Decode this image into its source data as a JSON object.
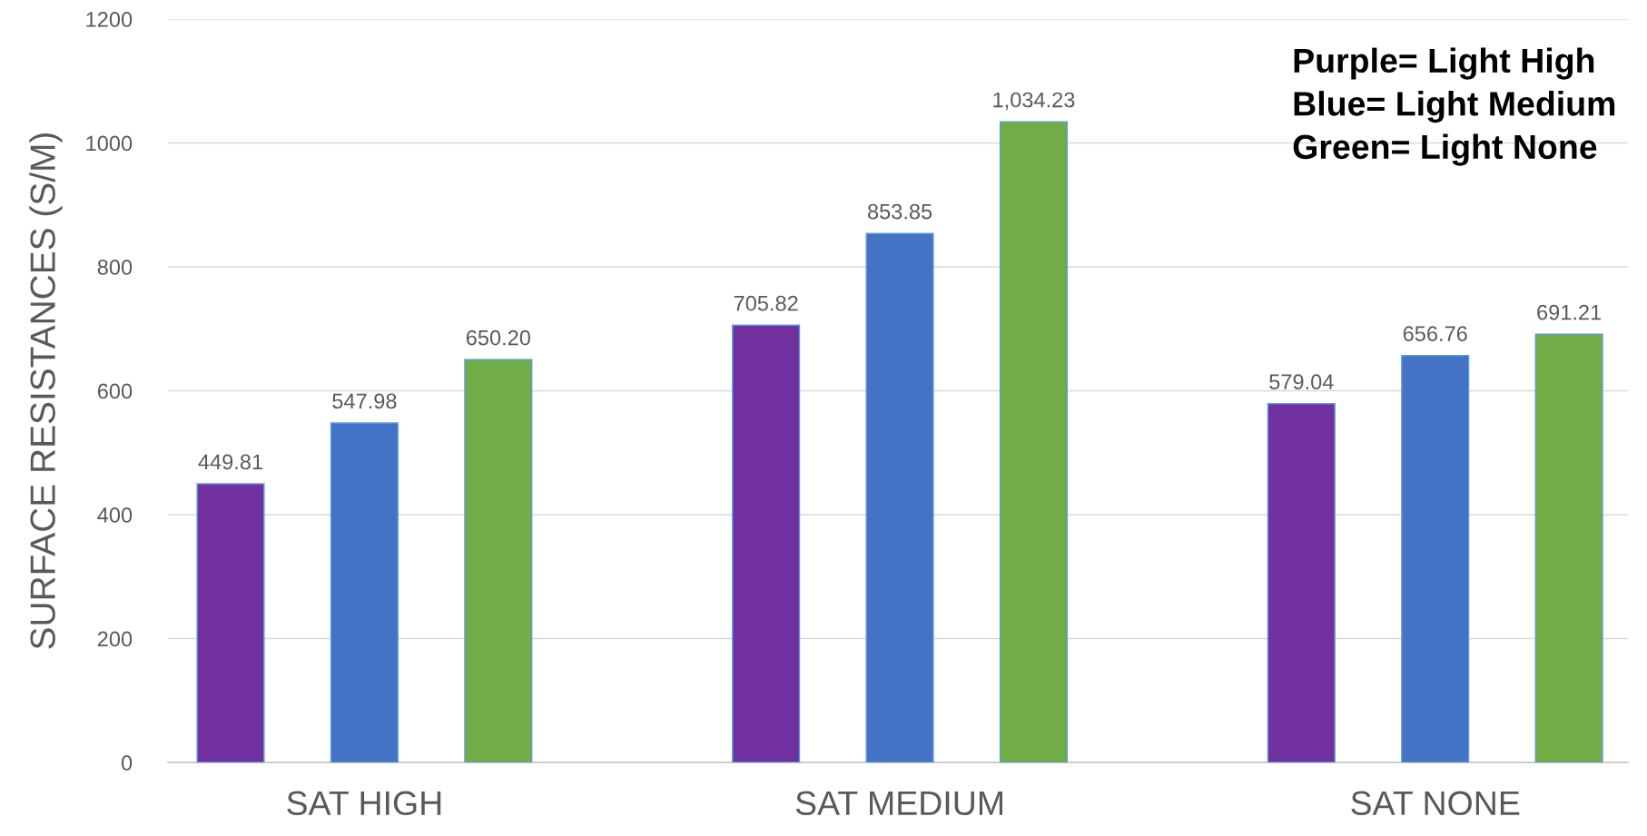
{
  "chart_data": {
    "type": "bar",
    "ylabel": "SURFACE RESISTANCES (S/M)",
    "categories": [
      "SAT HIGH",
      "SAT MEDIUM",
      "SAT NONE"
    ],
    "series": [
      {
        "color": "#7030a0",
        "values": [
          449.81,
          705.82,
          579.04
        ],
        "value_labels": [
          "449.81",
          "705.82",
          "579.04"
        ]
      },
      {
        "color": "#4472c4",
        "values": [
          547.98,
          853.85,
          656.76
        ],
        "value_labels": [
          "547.98",
          "853.85",
          "656.76"
        ]
      },
      {
        "color": "#70ad47",
        "values": [
          650.2,
          1034.23,
          691.21
        ],
        "value_labels": [
          "650.20",
          "1,034.23",
          "691.21"
        ]
      }
    ],
    "ylim": [
      0,
      1200
    ],
    "yticks": [
      0,
      200,
      400,
      600,
      800,
      1000,
      1200
    ],
    "grid": "y",
    "legend": false,
    "annotations": [
      "Purple= Light High",
      "Blue= Light Medium",
      "Green= Light None"
    ]
  }
}
